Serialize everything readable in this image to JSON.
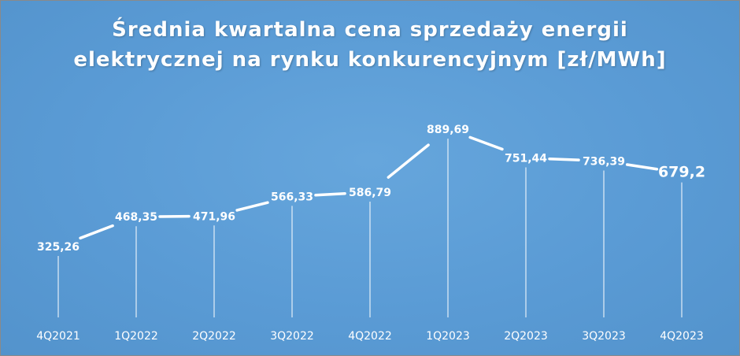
{
  "chart_data": {
    "type": "line",
    "title_lines": [
      "Średnia kwartalna cena sprzedaży energii",
      "elektrycznej na rynku konkurencyjnym [zł/MWh]"
    ],
    "categories": [
      "4Q2021",
      "1Q2022",
      "2Q2022",
      "3Q2022",
      "4Q2022",
      "1Q2023",
      "2Q2023",
      "3Q2023",
      "4Q2023"
    ],
    "values": [
      325.26,
      468.35,
      471.96,
      566.33,
      586.79,
      889.69,
      751.44,
      736.39,
      679.2
    ],
    "data_labels": [
      "325,26",
      "468,35",
      "471,96",
      "566,33",
      "586,79",
      "889,69",
      "751,44",
      "736,39",
      "679,2"
    ],
    "highlighted": [
      "4Q2022",
      "4Q2023"
    ],
    "colors": {
      "background": "#5a9bd5",
      "line": "#ffffff",
      "label": "#ffffff",
      "highlight": "#ffff33"
    },
    "grid": false,
    "legend": "none"
  }
}
